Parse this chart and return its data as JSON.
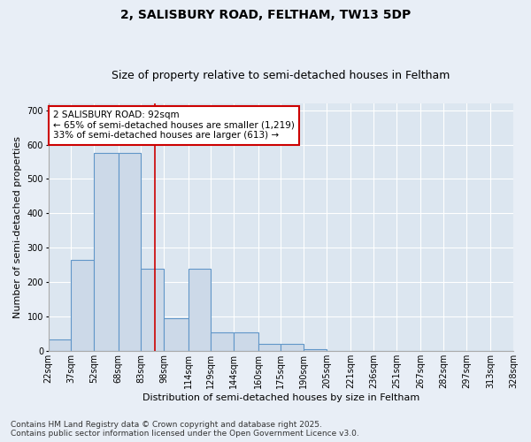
{
  "title_line1": "2, SALISBURY ROAD, FELTHAM, TW13 5DP",
  "title_line2": "Size of property relative to semi-detached houses in Feltham",
  "xlabel": "Distribution of semi-detached houses by size in Feltham",
  "ylabel": "Number of semi-detached properties",
  "footnote": "Contains HM Land Registry data © Crown copyright and database right 2025.\nContains public sector information licensed under the Open Government Licence v3.0.",
  "annotation_title": "2 SALISBURY ROAD: 92sqm",
  "annotation_line2": "← 65% of semi-detached houses are smaller (1,219)",
  "annotation_line3": "33% of semi-detached houses are larger (613) →",
  "bar_left_edges": [
    22,
    37,
    52,
    68,
    83,
    98,
    114,
    129,
    144,
    160,
    175,
    190,
    205,
    221,
    236,
    251,
    267,
    282,
    297,
    313
  ],
  "bar_widths": [
    15,
    15,
    16,
    15,
    15,
    16,
    15,
    15,
    16,
    15,
    15,
    15,
    16,
    15,
    15,
    16,
    15,
    15,
    16,
    15
  ],
  "bar_heights": [
    35,
    265,
    575,
    575,
    240,
    95,
    240,
    55,
    55,
    20,
    20,
    5,
    0,
    0,
    0,
    0,
    0,
    0,
    0,
    0
  ],
  "tick_labels": [
    "22sqm",
    "37sqm",
    "52sqm",
    "68sqm",
    "83sqm",
    "98sqm",
    "114sqm",
    "129sqm",
    "144sqm",
    "160sqm",
    "175sqm",
    "190sqm",
    "205sqm",
    "221sqm",
    "236sqm",
    "251sqm",
    "267sqm",
    "282sqm",
    "297sqm",
    "313sqm",
    "328sqm"
  ],
  "ylim": [
    0,
    720
  ],
  "yticks": [
    0,
    100,
    200,
    300,
    400,
    500,
    600,
    700
  ],
  "bar_color": "#ccd9e8",
  "bar_edge_color": "#6096c8",
  "vline_color": "#cc0000",
  "vline_x": 92,
  "annotation_box_facecolor": "#ffffff",
  "annotation_box_edgecolor": "#cc0000",
  "fig_bg_color": "#e8eef6",
  "plot_bg_color": "#dce6f0",
  "grid_color": "#ffffff",
  "title1_fontsize": 10,
  "title2_fontsize": 9,
  "axis_label_fontsize": 8,
  "tick_fontsize": 7,
  "annotation_fontsize": 7.5,
  "footnote_fontsize": 6.5
}
